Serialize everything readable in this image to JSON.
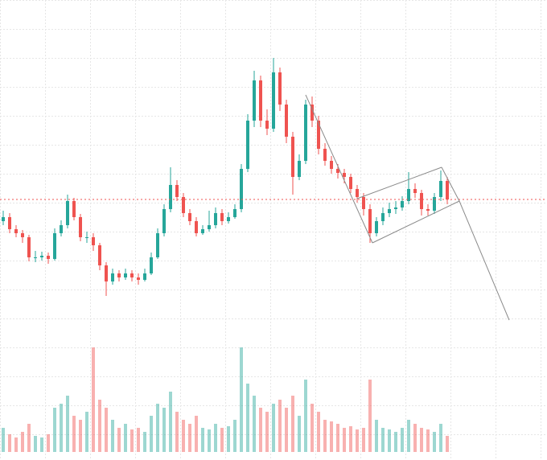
{
  "chart_data": {
    "type": "candlestick",
    "ylim": [
      0,
      420
    ],
    "up_color": "#26a69a",
    "down_color": "#ef5350",
    "ohlc": [
      [
        145,
        158,
        140,
        150
      ],
      [
        150,
        155,
        130,
        135
      ],
      [
        135,
        140,
        125,
        130
      ],
      [
        130,
        134,
        118,
        125
      ],
      [
        125,
        128,
        95,
        100
      ],
      [
        100,
        108,
        94,
        100
      ],
      [
        100,
        107,
        96,
        102
      ],
      [
        102,
        106,
        92,
        98
      ],
      [
        98,
        136,
        96,
        130
      ],
      [
        130,
        146,
        126,
        140
      ],
      [
        140,
        178,
        136,
        170
      ],
      [
        170,
        174,
        146,
        150
      ],
      [
        150,
        154,
        120,
        125
      ],
      [
        125,
        132,
        118,
        125
      ],
      [
        125,
        130,
        108,
        115
      ],
      [
        115,
        118,
        84,
        90
      ],
      [
        90,
        94,
        52,
        70
      ],
      [
        70,
        86,
        66,
        80
      ],
      [
        80,
        84,
        70,
        75
      ],
      [
        75,
        86,
        72,
        80
      ],
      [
        80,
        84,
        70,
        75
      ],
      [
        75,
        80,
        66,
        72
      ],
      [
        72,
        86,
        70,
        80
      ],
      [
        80,
        106,
        78,
        100
      ],
      [
        100,
        136,
        98,
        130
      ],
      [
        130,
        166,
        126,
        160
      ],
      [
        160,
        212,
        156,
        190
      ],
      [
        190,
        196,
        170,
        175
      ],
      [
        175,
        180,
        150,
        155
      ],
      [
        155,
        160,
        140,
        145
      ],
      [
        145,
        150,
        126,
        130
      ],
      [
        130,
        140,
        128,
        135
      ],
      [
        135,
        158,
        132,
        140
      ],
      [
        140,
        162,
        136,
        155
      ],
      [
        155,
        160,
        140,
        145
      ],
      [
        145,
        156,
        142,
        150
      ],
      [
        150,
        166,
        148,
        160
      ],
      [
        160,
        216,
        156,
        210
      ],
      [
        210,
        278,
        206,
        270
      ],
      [
        270,
        332,
        262,
        320
      ],
      [
        320,
        326,
        262,
        270
      ],
      [
        270,
        284,
        252,
        260
      ],
      [
        260,
        348,
        256,
        330
      ],
      [
        330,
        336,
        282,
        290
      ],
      [
        290,
        296,
        242,
        250
      ],
      [
        250,
        256,
        178,
        200
      ],
      [
        200,
        228,
        196,
        220
      ],
      [
        220,
        296,
        216,
        290
      ],
      [
        290,
        300,
        262,
        270
      ],
      [
        270,
        276,
        228,
        235
      ],
      [
        235,
        242,
        214,
        220
      ],
      [
        220,
        226,
        204,
        210
      ],
      [
        210,
        216,
        198,
        205
      ],
      [
        205,
        210,
        192,
        200
      ],
      [
        200,
        204,
        180,
        185
      ],
      [
        185,
        190,
        168,
        175
      ],
      [
        175,
        180,
        152,
        160
      ],
      [
        160,
        166,
        118,
        130
      ],
      [
        130,
        150,
        126,
        145
      ],
      [
        145,
        162,
        140,
        155
      ],
      [
        155,
        168,
        150,
        160
      ],
      [
        160,
        170,
        154,
        162
      ],
      [
        162,
        176,
        158,
        170
      ],
      [
        170,
        206,
        166,
        185
      ],
      [
        185,
        192,
        174,
        180
      ],
      [
        180,
        184,
        152,
        160
      ],
      [
        160,
        166,
        152,
        158
      ],
      [
        158,
        180,
        154,
        175
      ],
      [
        175,
        208,
        170,
        195
      ],
      [
        195,
        200,
        166,
        172
      ]
    ],
    "volume": [
      30,
      22,
      18,
      25,
      35,
      20,
      18,
      22,
      55,
      60,
      70,
      45,
      40,
      50,
      130,
      65,
      55,
      40,
      30,
      35,
      28,
      30,
      25,
      45,
      60,
      55,
      75,
      50,
      40,
      35,
      45,
      30,
      28,
      35,
      30,
      32,
      40,
      130,
      85,
      70,
      55,
      50,
      60,
      65,
      55,
      70,
      45,
      90,
      60,
      50,
      40,
      38,
      35,
      30,
      32,
      28,
      30,
      90,
      40,
      30,
      28,
      25,
      30,
      40,
      35,
      30,
      28,
      25,
      35,
      20
    ]
  }
}
